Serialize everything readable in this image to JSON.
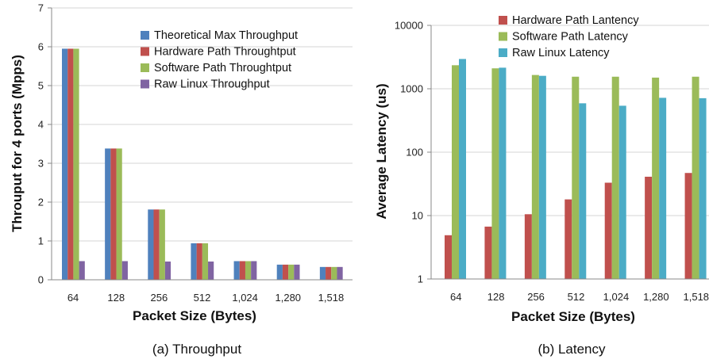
{
  "chart_data": [
    {
      "type": "bar",
      "caption": "(a) Throughput",
      "xlabel": "Packet Size (Bytes)",
      "ylabel": "Throuput for 4 ports (Mpps)",
      "categories": [
        "64",
        "128",
        "256",
        "512",
        "1,024",
        "1,280",
        "1,518"
      ],
      "ylim": [
        0,
        7
      ],
      "yticks": [
        0,
        1,
        2,
        3,
        4,
        5,
        6,
        7
      ],
      "grid": true,
      "legend_position": "top-right",
      "series": [
        {
          "name": "Theoretical Max Throughput",
          "color": "#4f81bd",
          "values": [
            5.95,
            3.38,
            1.81,
            0.94,
            0.48,
            0.39,
            0.33
          ]
        },
        {
          "name": "Hardware Path Throughtput",
          "color": "#c0504d",
          "values": [
            5.95,
            3.38,
            1.81,
            0.94,
            0.48,
            0.39,
            0.33
          ]
        },
        {
          "name": "Software Path Throughtput",
          "color": "#9bbb59",
          "values": [
            5.95,
            3.38,
            1.81,
            0.94,
            0.48,
            0.39,
            0.33
          ]
        },
        {
          "name": "Raw Linux Throughput",
          "color": "#8064a2",
          "values": [
            0.48,
            0.48,
            0.47,
            0.47,
            0.48,
            0.39,
            0.33
          ]
        }
      ]
    },
    {
      "type": "bar",
      "caption": "(b) Latency",
      "xlabel": "Packet Size (Bytes)",
      "ylabel": "Average Latency (us)",
      "categories": [
        "64",
        "128",
        "256",
        "512",
        "1,024",
        "1,280",
        "1,518"
      ],
      "yscale": "log",
      "ylim": [
        1,
        10000
      ],
      "yticks": [
        1,
        10,
        100,
        1000,
        10000
      ],
      "ytick_labels": [
        "1",
        "10",
        "100",
        "1000",
        "10000"
      ],
      "grid": true,
      "legend_position": "top-right",
      "series": [
        {
          "name": "Hardware Path Lantency",
          "color": "#c0504d",
          "values": [
            4.9,
            6.7,
            10.5,
            18,
            33,
            41,
            47
          ]
        },
        {
          "name": "Software Path Latency",
          "color": "#9bbb59",
          "values": [
            2350,
            2100,
            1650,
            1550,
            1550,
            1500,
            1550
          ]
        },
        {
          "name": "Raw Linux Latency",
          "color": "#4bacc6",
          "values": [
            2950,
            2150,
            1600,
            590,
            540,
            720,
            710
          ]
        }
      ]
    }
  ]
}
